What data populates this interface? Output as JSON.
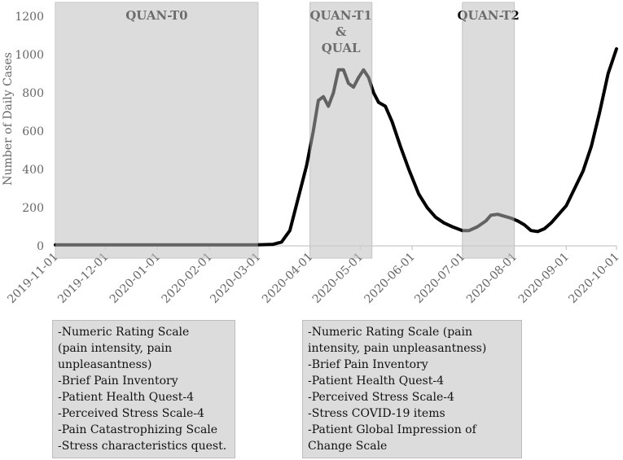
{
  "chart_data": {
    "type": "line",
    "title": "",
    "xlabel": "",
    "ylabel": "Number of Daily Cases",
    "ylim": [
      0,
      1200
    ],
    "yticks": [
      0,
      200,
      400,
      600,
      800,
      1000,
      1200
    ],
    "xlim": [
      "2019-11-01",
      "2020-10-01"
    ],
    "xticks": [
      "2019-11-01",
      "2019-12-01",
      "2020-01-01",
      "2020-02-01",
      "2020-03-01",
      "2020-04-01",
      "2020-05-01",
      "2020-06-01",
      "2020-07-01",
      "2020-08-01",
      "2020-09-01",
      "2020-10-01"
    ],
    "grid": false,
    "line_color": "#000000",
    "shade_color": "#dcdcdc",
    "series": [
      {
        "name": "",
        "x": [
          "2019-11-01",
          "2020-02-29",
          "2020-03-10",
          "2020-03-15",
          "2020-03-20",
          "2020-03-25",
          "2020-03-30",
          "2020-04-03",
          "2020-04-06",
          "2020-04-09",
          "2020-04-12",
          "2020-04-15",
          "2020-04-18",
          "2020-04-21",
          "2020-04-24",
          "2020-04-27",
          "2020-04-30",
          "2020-05-03",
          "2020-05-06",
          "2020-05-09",
          "2020-05-12",
          "2020-05-16",
          "2020-05-20",
          "2020-05-25",
          "2020-05-30",
          "2020-06-05",
          "2020-06-10",
          "2020-06-15",
          "2020-06-20",
          "2020-06-25",
          "2020-07-01",
          "2020-07-05",
          "2020-07-10",
          "2020-07-15",
          "2020-07-18",
          "2020-07-22",
          "2020-07-26",
          "2020-07-30",
          "2020-08-03",
          "2020-08-07",
          "2020-08-11",
          "2020-08-15",
          "2020-08-19",
          "2020-08-23",
          "2020-08-27",
          "2020-09-01",
          "2020-09-06",
          "2020-09-11",
          "2020-09-16",
          "2020-09-21",
          "2020-09-26",
          "2020-10-01"
        ],
        "values": [
          5,
          5,
          8,
          20,
          80,
          250,
          420,
          600,
          760,
          780,
          730,
          800,
          920,
          920,
          850,
          830,
          880,
          920,
          880,
          800,
          750,
          730,
          650,
          520,
          400,
          270,
          200,
          150,
          120,
          100,
          80,
          80,
          100,
          130,
          160,
          165,
          155,
          145,
          130,
          110,
          80,
          75,
          90,
          120,
          160,
          210,
          300,
          390,
          520,
          700,
          900,
          1030
        ]
      }
    ],
    "periods": [
      {
        "label_lines": [
          "QUAN-T0"
        ],
        "start": "2019-11-01",
        "end": "2020-03-01"
      },
      {
        "label_lines": [
          "QUAN-T1",
          "&",
          "QUAL"
        ],
        "start": "2020-04-01",
        "end": "2020-05-08"
      },
      {
        "label_lines": [
          "QUAN-T2"
        ],
        "start": "2020-07-01",
        "end": "2020-08-01"
      }
    ]
  },
  "boxes": [
    {
      "lines": [
        "-Numeric Rating Scale",
        "(pain intensity, pain",
        "unpleasantness)",
        "-Brief Pain Inventory",
        "-Patient Health Quest-4",
        "-Perceived Stress Scale-4",
        "-Pain Catastrophizing Scale",
        "-Stress characteristics quest."
      ]
    },
    {
      "lines": [
        "-Numeric Rating Scale (pain",
        "intensity, pain unpleasantness)",
        "-Brief Pain Inventory",
        "-Patient Health Quest-4",
        "-Perceived Stress Scale-4",
        "-Stress COVID-19 items",
        "-Patient Global Impression of",
        "Change Scale"
      ]
    }
  ]
}
